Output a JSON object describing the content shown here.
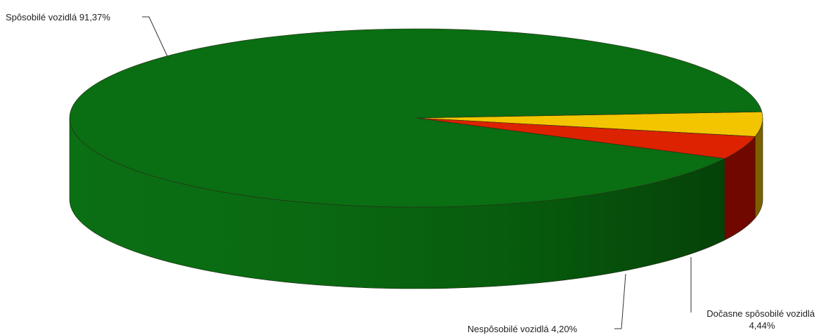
{
  "chart_data": {
    "type": "pie",
    "variant": "3d",
    "title": "",
    "legend": "none",
    "slices": [
      {
        "label": "Spôsobilé vozidlá",
        "value": 91.37,
        "value_label": "91,37%",
        "color": "#0a6e12",
        "side_color": "#075a0e"
      },
      {
        "label": "Dočasne spôsobilé vozidlá",
        "value": 4.44,
        "value_label": "4,44%",
        "color": "#f2c500",
        "side_color": "#7c6000"
      },
      {
        "label": "Nespôsobilé vozidlá",
        "value": 4.2,
        "value_label": "4,20%",
        "color": "#dc2200",
        "side_color": "#700800"
      }
    ]
  }
}
